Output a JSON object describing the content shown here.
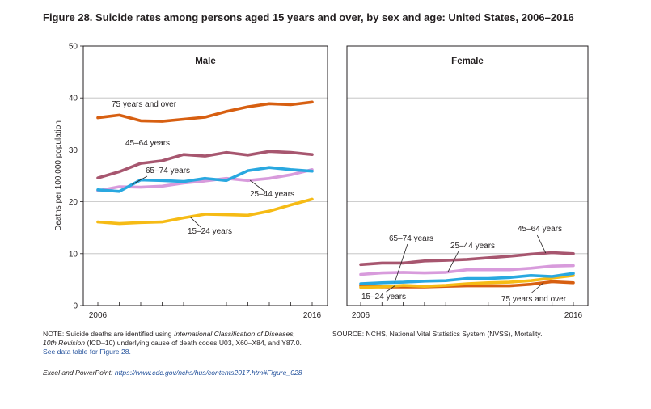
{
  "title": "Figure 28. Suicide rates among persons aged 15 years and over, by sex and age: United States, 2006–2016",
  "note": {
    "prefix": "NOTE: Suicide deaths are identified using ",
    "icd_name": "International Classification of Diseases, 10th Revision",
    "middle": " (ICD–10) underlying cause of death codes U03, X60–X84, and Y87.0. ",
    "link": "See data table for Figure 28."
  },
  "source": "SOURCE: NCHS, National Vital Statistics System (NVSS), Mortality.",
  "excel": {
    "label": "Excel and PowerPoint: ",
    "url": "https://www.cdc.gov/nchs/hus/contents2017.htm#Figure_028"
  },
  "chart_data": [
    {
      "type": "line",
      "title": "Male",
      "ylabel": "Deaths per 100,000 population",
      "ylim": [
        0,
        50
      ],
      "yticks": [
        "0",
        "10",
        "20",
        "30",
        "40",
        "50"
      ],
      "x": [
        2006,
        2007,
        2008,
        2009,
        2010,
        2011,
        2012,
        2013,
        2014,
        2015,
        2016
      ],
      "xtick_labels": [
        "2006",
        "2016"
      ],
      "grid": true,
      "series": [
        {
          "name": "75 years and over",
          "color": "#d75f11",
          "values": [
            36.2,
            36.7,
            35.6,
            35.5,
            35.9,
            36.3,
            37.4,
            38.3,
            38.9,
            38.7,
            39.2
          ]
        },
        {
          "name": "45–64 years",
          "color": "#a7566f",
          "values": [
            24.6,
            25.8,
            27.4,
            27.9,
            29.1,
            28.8,
            29.5,
            29.0,
            29.7,
            29.5,
            29.1
          ]
        },
        {
          "name": "65–74 years",
          "color": "#29a8e0",
          "values": [
            22.3,
            22.0,
            24.2,
            24.1,
            23.9,
            24.5,
            24.1,
            26.0,
            26.6,
            26.2,
            25.9
          ]
        },
        {
          "name": "25–44 years",
          "color": "#d89bdc",
          "values": [
            22.1,
            22.9,
            22.8,
            23.0,
            23.6,
            24.0,
            24.5,
            24.1,
            24.5,
            25.2,
            26.2
          ]
        },
        {
          "name": "15–24 years",
          "color": "#f6bb15",
          "values": [
            16.1,
            15.8,
            16.0,
            16.1,
            16.9,
            17.6,
            17.5,
            17.4,
            18.2,
            19.4,
            20.5
          ]
        }
      ]
    },
    {
      "type": "line",
      "title": "Female",
      "ylim": [
        0,
        50
      ],
      "x": [
        2006,
        2007,
        2008,
        2009,
        2010,
        2011,
        2012,
        2013,
        2014,
        2015,
        2016
      ],
      "xtick_labels": [
        "2006",
        "2016"
      ],
      "grid": true,
      "series": [
        {
          "name": "45–64 years",
          "color": "#a7566f",
          "values": [
            7.9,
            8.2,
            8.2,
            8.6,
            8.7,
            8.9,
            9.2,
            9.5,
            9.9,
            10.2,
            10.0
          ]
        },
        {
          "name": "25–44 years",
          "color": "#d89bdc",
          "values": [
            6.0,
            6.3,
            6.4,
            6.3,
            6.4,
            6.9,
            6.9,
            6.9,
            7.2,
            7.6,
            7.7
          ]
        },
        {
          "name": "65–74 years",
          "color": "#29a8e0",
          "values": [
            4.2,
            4.4,
            4.5,
            4.7,
            4.8,
            5.2,
            5.2,
            5.4,
            5.8,
            5.6,
            6.2
          ]
        },
        {
          "name": "15–24 years",
          "color": "#f6bb15",
          "values": [
            3.5,
            3.6,
            3.9,
            3.7,
            3.9,
            4.2,
            4.4,
            4.5,
            4.8,
            5.3,
            5.8
          ]
        },
        {
          "name": "75 years and over",
          "color": "#d75f11",
          "values": [
            3.8,
            3.6,
            3.6,
            3.6,
            3.7,
            3.8,
            3.8,
            3.8,
            4.1,
            4.6,
            4.4
          ]
        }
      ]
    }
  ]
}
